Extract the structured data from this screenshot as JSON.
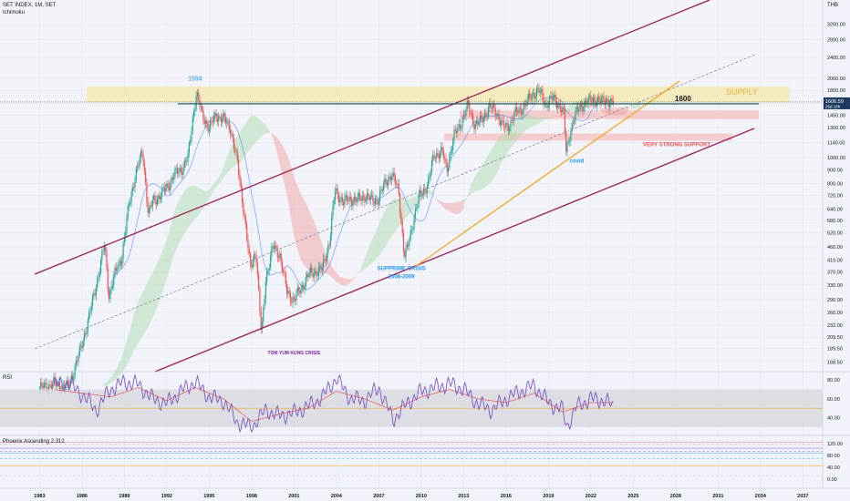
{
  "header": {
    "symbol": "SET INDEX, 1M, SET",
    "indicator": "Ichimoku",
    "currency": "THB"
  },
  "colors": {
    "up_candle": "#26a69a",
    "down_candle": "#ef5350",
    "channel": "#9c1f52",
    "support_trend": "#f5a623",
    "resistance_line": "#0f4d4a",
    "supply_zone": "#f5e79e",
    "support_zone": "#f7b8b8",
    "cloud_up": "#a5d6a7",
    "cloud_down": "#ef9a9a",
    "rsi_line": "#7e57c2",
    "rsi_ma": "#ef5350",
    "annotation_blue": "#2196f3",
    "annotation_red": "#ef5350",
    "annotation_purple": "#7b1fa2",
    "price_tag": "#1e3a5f"
  },
  "chart_data": {
    "type": "candlestick",
    "title": "SET INDEX, 1M, SET",
    "y_scale": "log",
    "ylim": [
      155,
      3800
    ],
    "xlim": [
      1980.2,
      2038.4
    ],
    "y_ticks": [
      "3200.00",
      "2800.00",
      "2400.00",
      "2000.00",
      "1800.00",
      "1600.00",
      "1450.00",
      "1300.00",
      "1140.00",
      "1000.00",
      "900.00",
      "800.00",
      "720.00",
      "640.00",
      "580.00",
      "520.00",
      "460.00",
      "410.00",
      "370.00",
      "330.00",
      "290.00",
      "260.00",
      "232.00",
      "209.50",
      "189.50",
      "168.50"
    ],
    "x_ticks": [
      "1983",
      "1986",
      "1989",
      "1992",
      "1995",
      "1998",
      "2001",
      "2004",
      "2007",
      "2010",
      "2013",
      "2016",
      "2019",
      "2022",
      "2025",
      "2028",
      "2031",
      "2034",
      "2037"
    ],
    "price_series": [
      [
        1983.0,
        134
      ],
      [
        1984.0,
        140
      ],
      [
        1985.0,
        135
      ],
      [
        1985.8,
        180
      ],
      [
        1986.5,
        250
      ],
      [
        1987.0,
        330
      ],
      [
        1987.6,
        470
      ],
      [
        1987.9,
        300
      ],
      [
        1988.3,
        360
      ],
      [
        1988.8,
        420
      ],
      [
        1989.3,
        650
      ],
      [
        1989.8,
        880
      ],
      [
        1990.3,
        1050
      ],
      [
        1990.7,
        610
      ],
      [
        1991.0,
        680
      ],
      [
        1991.5,
        720
      ],
      [
        1992.0,
        770
      ],
      [
        1992.5,
        860
      ],
      [
        1993.0,
        900
      ],
      [
        1993.5,
        1000
      ],
      [
        1993.9,
        1500
      ],
      [
        1994.1,
        1760
      ],
      [
        1994.5,
        1450
      ],
      [
        1995.0,
        1300
      ],
      [
        1995.5,
        1450
      ],
      [
        1996.0,
        1400
      ],
      [
        1996.5,
        1300
      ],
      [
        1997.0,
        950
      ],
      [
        1997.5,
        600
      ],
      [
        1997.9,
        380
      ],
      [
        1998.3,
        450
      ],
      [
        1998.7,
        210
      ],
      [
        1999.0,
        350
      ],
      [
        1999.5,
        460
      ],
      [
        2000.0,
        430
      ],
      [
        2000.5,
        310
      ],
      [
        2001.0,
        290
      ],
      [
        2001.5,
        320
      ],
      [
        2002.0,
        360
      ],
      [
        2002.5,
        370
      ],
      [
        2003.0,
        380
      ],
      [
        2003.5,
        480
      ],
      [
        2003.9,
        750
      ],
      [
        2004.5,
        680
      ],
      [
        2005.0,
        700
      ],
      [
        2005.5,
        690
      ],
      [
        2006.0,
        720
      ],
      [
        2006.5,
        690
      ],
      [
        2007.0,
        700
      ],
      [
        2007.5,
        820
      ],
      [
        2007.9,
        860
      ],
      [
        2008.4,
        760
      ],
      [
        2008.8,
        420
      ],
      [
        2009.0,
        450
      ],
      [
        2009.5,
        600
      ],
      [
        2009.9,
        720
      ],
      [
        2010.5,
        800
      ],
      [
        2010.9,
        1030
      ],
      [
        2011.5,
        1050
      ],
      [
        2011.8,
        900
      ],
      [
        2012.3,
        1200
      ],
      [
        2012.9,
        1390
      ],
      [
        2013.3,
        1580
      ],
      [
        2013.8,
        1330
      ],
      [
        2014.2,
        1370
      ],
      [
        2014.8,
        1550
      ],
      [
        2015.3,
        1500
      ],
      [
        2015.8,
        1300
      ],
      [
        2016.1,
        1310
      ],
      [
        2016.7,
        1480
      ],
      [
        2017.3,
        1570
      ],
      [
        2017.9,
        1750
      ],
      [
        2018.3,
        1800
      ],
      [
        2018.8,
        1600
      ],
      [
        2019.3,
        1680
      ],
      [
        2019.8,
        1580
      ],
      [
        2020.1,
        1450
      ],
      [
        2020.25,
        1050
      ],
      [
        2020.6,
        1300
      ],
      [
        2020.9,
        1450
      ],
      [
        2021.3,
        1580
      ],
      [
        2021.7,
        1610
      ],
      [
        2022.2,
        1680
      ],
      [
        2022.7,
        1620
      ],
      [
        2023.1,
        1670
      ],
      [
        2023.4,
        1600
      ],
      [
        2023.6,
        1610
      ]
    ],
    "last_price": "1606.59",
    "last_change": "25d 18h",
    "levels": [
      {
        "label": "1600",
        "value": 1600
      }
    ],
    "zones": [
      {
        "label": "SUPPLY",
        "from": 1620,
        "to": 1860
      },
      {
        "label": "",
        "from": 1400,
        "to": 1510
      },
      {
        "label": "VERY STRONG SUPPORT",
        "from": 1160,
        "to": 1235
      }
    ],
    "annotations": [
      {
        "text": "1994",
        "x": 1994.0,
        "y": 1960
      },
      {
        "text": "SUPPRIME CRISIS",
        "x": 2008.6,
        "y": 375
      },
      {
        "text": "2008-2009",
        "x": 2008.6,
        "y": 350
      },
      {
        "text": "covid",
        "x": 2021.0,
        "y": 960
      },
      {
        "text": "TOM YUM KUNG CRISIS",
        "x": 2001.0,
        "y": 180
      }
    ],
    "rsi": {
      "title": "RSI",
      "ticks": [
        "80.00",
        "60.00",
        "40.00"
      ],
      "band": [
        30,
        70
      ],
      "ylim": [
        25,
        85
      ],
      "series": [
        [
          1984.0,
          74
        ],
        [
          1985.0,
          77
        ],
        [
          1986.0,
          65
        ],
        [
          1987.0,
          48
        ],
        [
          1988.0,
          70
        ],
        [
          1989.0,
          78
        ],
        [
          1990.0,
          75
        ],
        [
          1991.0,
          60
        ],
        [
          1992.0,
          55
        ],
        [
          1993.0,
          68
        ],
        [
          1994.0,
          78
        ],
        [
          1995.0,
          62
        ],
        [
          1996.0,
          58
        ],
        [
          1997.0,
          35
        ],
        [
          1998.0,
          30
        ],
        [
          1999.0,
          48
        ],
        [
          2000.0,
          42
        ],
        [
          2001.0,
          45
        ],
        [
          2002.0,
          52
        ],
        [
          2003.0,
          62
        ],
        [
          2004.0,
          82
        ],
        [
          2005.0,
          60
        ],
        [
          2006.0,
          58
        ],
        [
          2007.0,
          72
        ],
        [
          2008.0,
          38
        ],
        [
          2009.0,
          55
        ],
        [
          2010.0,
          68
        ],
        [
          2011.0,
          72
        ],
        [
          2012.0,
          76
        ],
        [
          2013.0,
          70
        ],
        [
          2014.0,
          55
        ],
        [
          2015.0,
          48
        ],
        [
          2016.0,
          60
        ],
        [
          2017.0,
          68
        ],
        [
          2018.0,
          74
        ],
        [
          2019.0,
          56
        ],
        [
          2020.0,
          48
        ],
        [
          2020.3,
          30
        ],
        [
          2021.0,
          52
        ],
        [
          2022.0,
          60
        ],
        [
          2023.0,
          58
        ],
        [
          2023.6,
          52
        ]
      ],
      "ma": [
        [
          1984.0,
          70
        ],
        [
          1986.0,
          66
        ],
        [
          1988.0,
          62
        ],
        [
          1990.0,
          72
        ],
        [
          1992.0,
          58
        ],
        [
          1994.0,
          72
        ],
        [
          1996.0,
          60
        ],
        [
          1998.0,
          36
        ],
        [
          2000.0,
          44
        ],
        [
          2002.0,
          50
        ],
        [
          2004.0,
          68
        ],
        [
          2006.0,
          60
        ],
        [
          2008.0,
          48
        ],
        [
          2010.0,
          62
        ],
        [
          2012.0,
          70
        ],
        [
          2014.0,
          60
        ],
        [
          2016.0,
          56
        ],
        [
          2018.0,
          66
        ],
        [
          2020.0,
          46
        ],
        [
          2022.0,
          56
        ],
        [
          2023.6,
          56
        ]
      ]
    },
    "phoenix": {
      "title": "Phoenix Ascending 2.312",
      "ticks": [
        "120.00",
        "80.00",
        "40.00",
        "0.00"
      ]
    }
  }
}
